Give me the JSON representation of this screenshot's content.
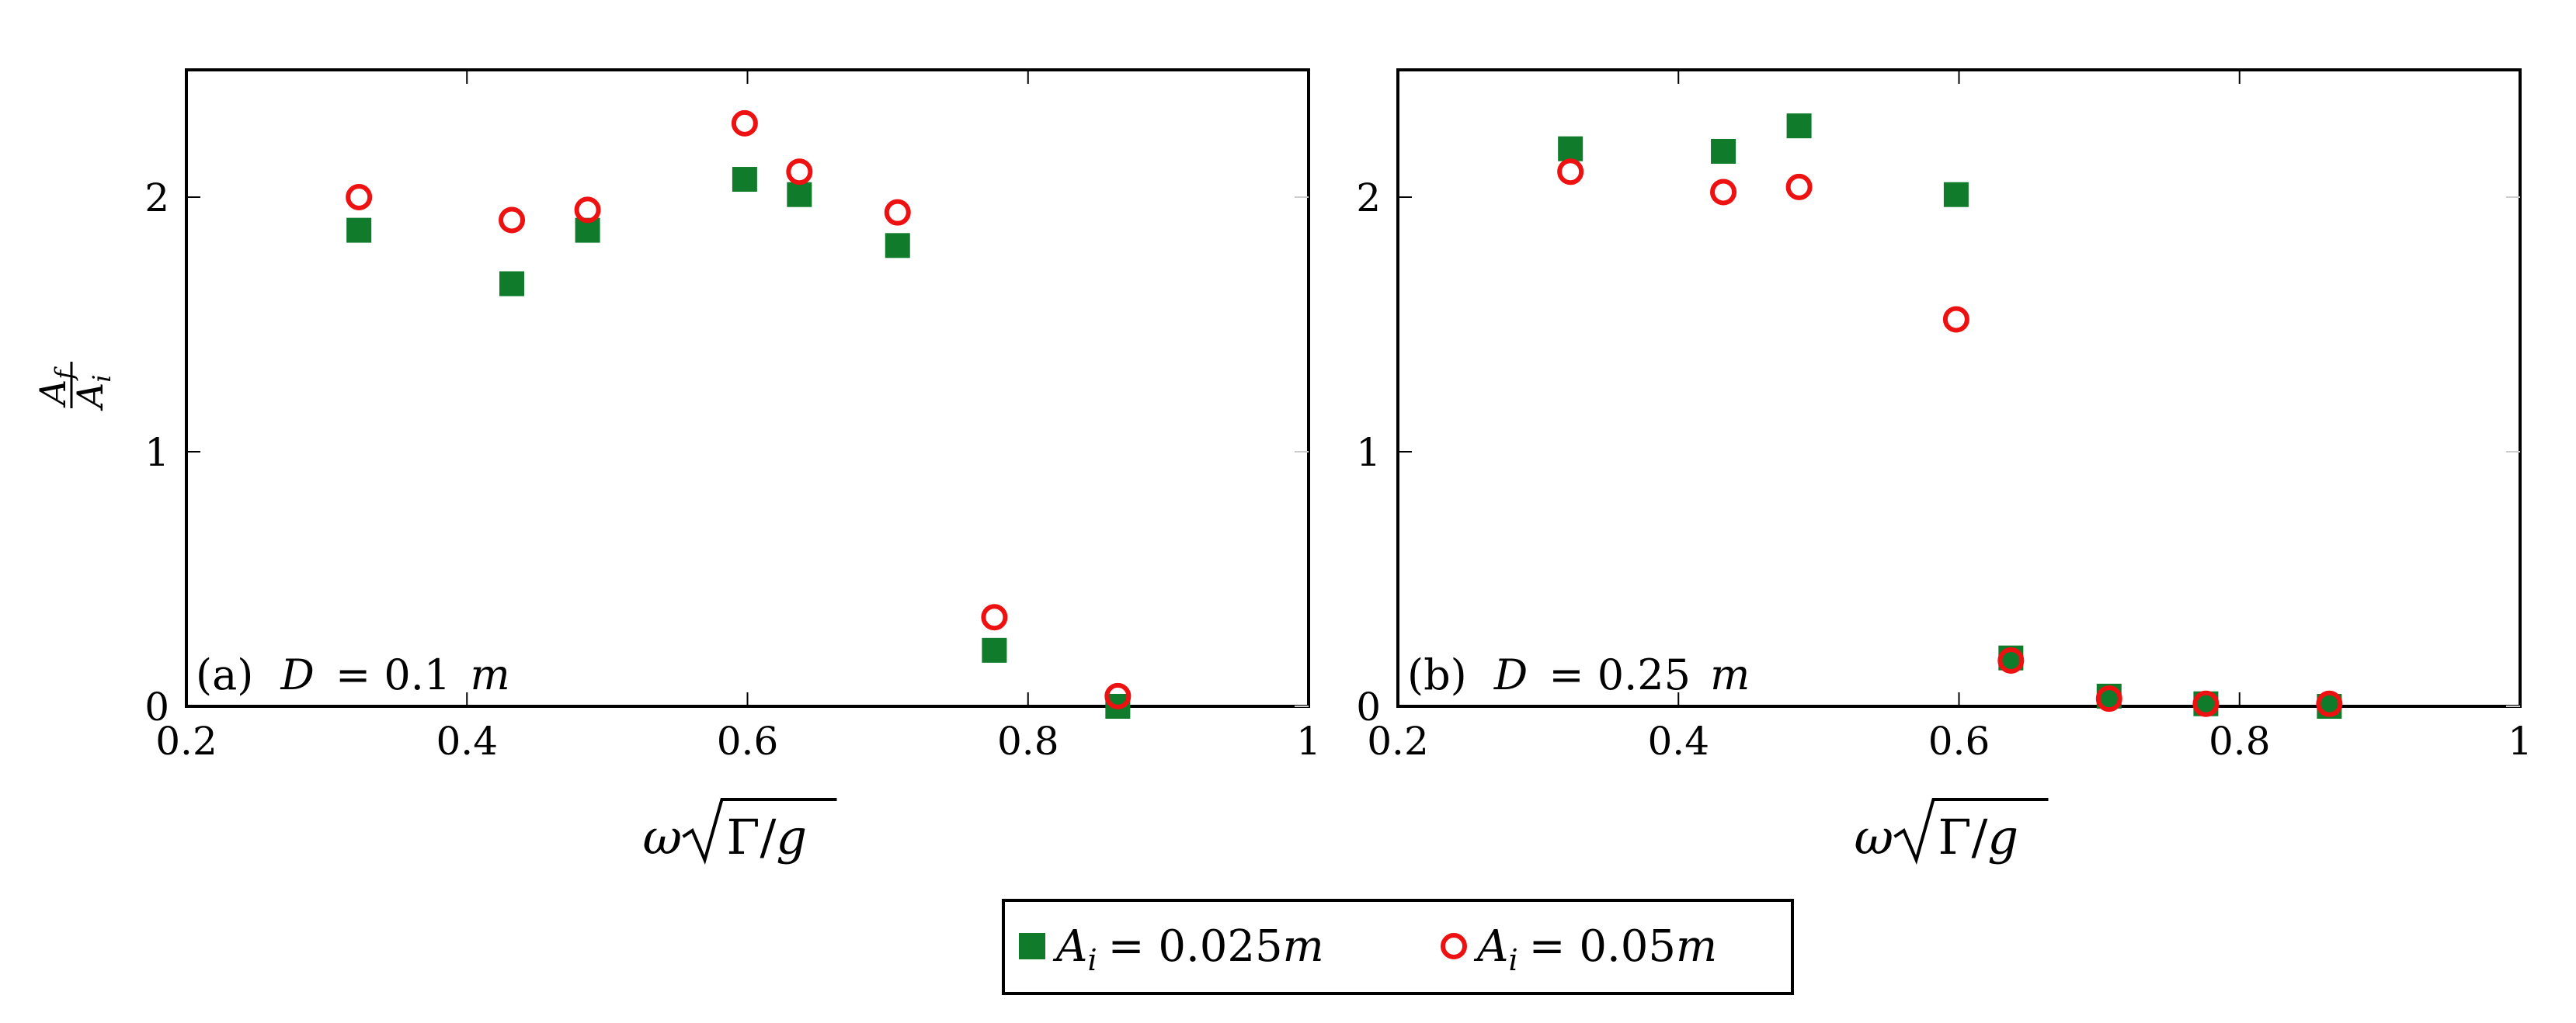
{
  "colors": {
    "series_a": "#0f7b2b",
    "series_b": "#ee1111",
    "frame": "#000000",
    "grid": "#cccccc"
  },
  "chart_data": [
    {
      "type": "scatter",
      "annotation_label": "(a)",
      "annotation_var": "D",
      "annotation_rest": "= 0.1",
      "annotation_unit": "m",
      "xlabel": "ω √Γ/g",
      "ylabel": "A_f / A_i",
      "xlim": [
        0.2,
        1.0
      ],
      "ylim": [
        0,
        2.5
      ],
      "xticks": [
        0.2,
        0.4,
        0.6,
        0.8,
        1.0
      ],
      "xtick_labels": [
        "0.2",
        "0.4",
        "0.6",
        "0.8",
        "1"
      ],
      "yticks": [
        0,
        1,
        2
      ],
      "ytick_labels": [
        "0",
        "1",
        "2"
      ],
      "series": [
        {
          "name": "A_i = 0.025m",
          "marker": "square",
          "points": [
            [
              0.323,
              1.87
            ],
            [
              0.432,
              1.66
            ],
            [
              0.486,
              1.87
            ],
            [
              0.598,
              2.07
            ],
            [
              0.637,
              2.01
            ],
            [
              0.707,
              1.81
            ],
            [
              0.776,
              0.22
            ],
            [
              0.864,
              0.0
            ]
          ]
        },
        {
          "name": "A_i = 0.05m",
          "marker": "circle",
          "points": [
            [
              0.323,
              2.0
            ],
            [
              0.432,
              1.91
            ],
            [
              0.486,
              1.95
            ],
            [
              0.598,
              2.29
            ],
            [
              0.637,
              2.1
            ],
            [
              0.707,
              1.94
            ],
            [
              0.776,
              0.35
            ],
            [
              0.864,
              0.04
            ]
          ]
        }
      ]
    },
    {
      "type": "scatter",
      "annotation_label": "(b)",
      "annotation_var": "D",
      "annotation_rest": "= 0.25",
      "annotation_unit": "m",
      "xlabel": "ω √Γ/g",
      "xlim": [
        0.2,
        1.0
      ],
      "ylim": [
        0,
        2.5
      ],
      "xticks": [
        0.2,
        0.4,
        0.6,
        0.8,
        1.0
      ],
      "xtick_labels": [
        "0.2",
        "0.4",
        "0.6",
        "0.8",
        "1"
      ],
      "yticks": [
        0,
        1,
        2
      ],
      "ytick_labels": [
        "0",
        "1",
        "2"
      ],
      "series": [
        {
          "name": "A_i = 0.025m",
          "marker": "square",
          "points": [
            [
              0.323,
              2.19
            ],
            [
              0.432,
              2.18
            ],
            [
              0.486,
              2.28
            ],
            [
              0.598,
              2.01
            ],
            [
              0.637,
              0.19
            ],
            [
              0.707,
              0.04
            ],
            [
              0.776,
              0.01
            ],
            [
              0.864,
              0.0
            ]
          ]
        },
        {
          "name": "A_i = 0.05m",
          "marker": "circle",
          "points": [
            [
              0.323,
              2.1
            ],
            [
              0.432,
              2.02
            ],
            [
              0.486,
              2.04
            ],
            [
              0.598,
              1.52
            ],
            [
              0.637,
              0.18
            ],
            [
              0.707,
              0.03
            ],
            [
              0.776,
              0.01
            ],
            [
              0.864,
              0.01
            ]
          ]
        }
      ]
    }
  ],
  "legend": {
    "placement": "bottom-center",
    "entries": [
      {
        "var": "A",
        "sub": "i",
        "rest": "= 0.025",
        "unit": "m"
      },
      {
        "var": "A",
        "sub": "i",
        "rest": "= 0.05",
        "unit": "m"
      }
    ]
  }
}
